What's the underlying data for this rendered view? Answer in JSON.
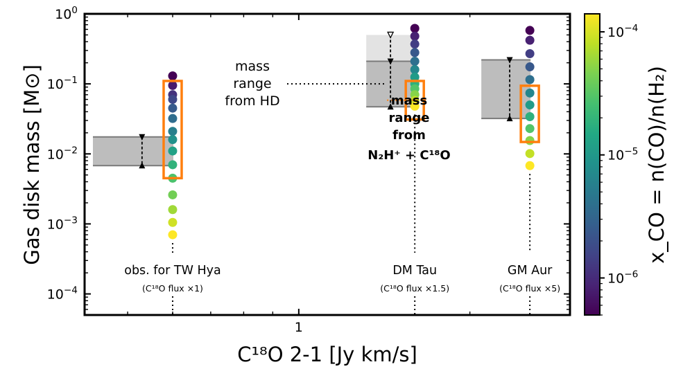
{
  "chart_data": {
    "type": "scatter",
    "xlabel": "C¹⁸O 2-1 [Jy km/s]",
    "ylabel": "Gas disk mass [M⊙]",
    "x_scale": "log",
    "y_scale": "log",
    "xlim": [
      0.42,
      3.0
    ],
    "ylim": [
      5e-05,
      1.0
    ],
    "x_major_ticks": [
      {
        "value": 1,
        "label": "1"
      }
    ],
    "x_minor_ticks": [
      0.5,
      0.6,
      0.7,
      0.8,
      0.9,
      2,
      3
    ],
    "y_ticks": [
      {
        "value": 0.0001,
        "base": "10",
        "exp": "−4"
      },
      {
        "value": 0.001,
        "base": "10",
        "exp": "−3"
      },
      {
        "value": 0.01,
        "base": "10",
        "exp": "−2"
      },
      {
        "value": 0.1,
        "base": "10",
        "exp": "−1"
      },
      {
        "value": 1,
        "base": "10",
        "exp": "0"
      }
    ],
    "colorbar": {
      "label": "x_CO = n(CO)/n(H₂)",
      "scale": "log",
      "range": [
        5e-07,
        0.00014
      ],
      "colormap": [
        "#440154",
        "#482475",
        "#414487",
        "#355f8d",
        "#2a788e",
        "#21918c",
        "#22a884",
        "#44bf70",
        "#7ad151",
        "#bddf26",
        "#fde725"
      ],
      "ticks": [
        {
          "value": 1e-06,
          "base": "10",
          "exp": "−6"
        },
        {
          "value": 1e-05,
          "base": "10",
          "exp": "−5"
        },
        {
          "value": 0.0001,
          "base": "10",
          "exp": "−4"
        }
      ]
    },
    "sources": [
      {
        "name": "obs. for TW Hya",
        "scale_label": "(C¹⁸O flux ×1)",
        "x": 0.6,
        "point_masses": [
          0.13,
          0.095,
          0.07,
          0.06,
          0.045,
          0.032,
          0.021,
          0.016,
          0.011,
          0.007,
          0.0045,
          0.0026,
          0.0016,
          0.00105,
          0.0007
        ],
        "hd_range": [
          0.0068,
          0.0175
        ],
        "hd_x": 0.53,
        "n2h_range": [
          0.0045,
          0.11
        ]
      },
      {
        "name": "DM Tau",
        "scale_label": "(C¹⁸O flux ×1.5)",
        "x": 1.6,
        "point_masses": [
          0.62,
          0.48,
          0.37,
          0.28,
          0.21,
          0.16,
          0.125,
          0.1,
          0.085,
          0.07,
          0.058,
          0.048
        ],
        "hd_range": [
          0.047,
          0.21
        ],
        "hd_x": 1.45,
        "hd_upper_light": 0.5,
        "n2h_range": [
          0.031,
          0.11
        ]
      },
      {
        "name": "GM Aur",
        "scale_label": "(C¹⁸O flux ×5)",
        "x": 2.55,
        "point_masses": [
          0.58,
          0.42,
          0.27,
          0.175,
          0.115,
          0.074,
          0.05,
          0.034,
          0.023,
          0.0155,
          0.0101,
          0.0068
        ],
        "hd_range": [
          0.032,
          0.22
        ],
        "hd_x": 2.35,
        "n2h_range": [
          0.0148,
          0.094
        ]
      }
    ],
    "annotations": {
      "hd_text": [
        "mass",
        "range",
        "from HD"
      ],
      "n2h_text": [
        "mass",
        "range",
        "from"
      ],
      "n2h_formula": "N₂H⁺ + C¹⁸O"
    }
  }
}
